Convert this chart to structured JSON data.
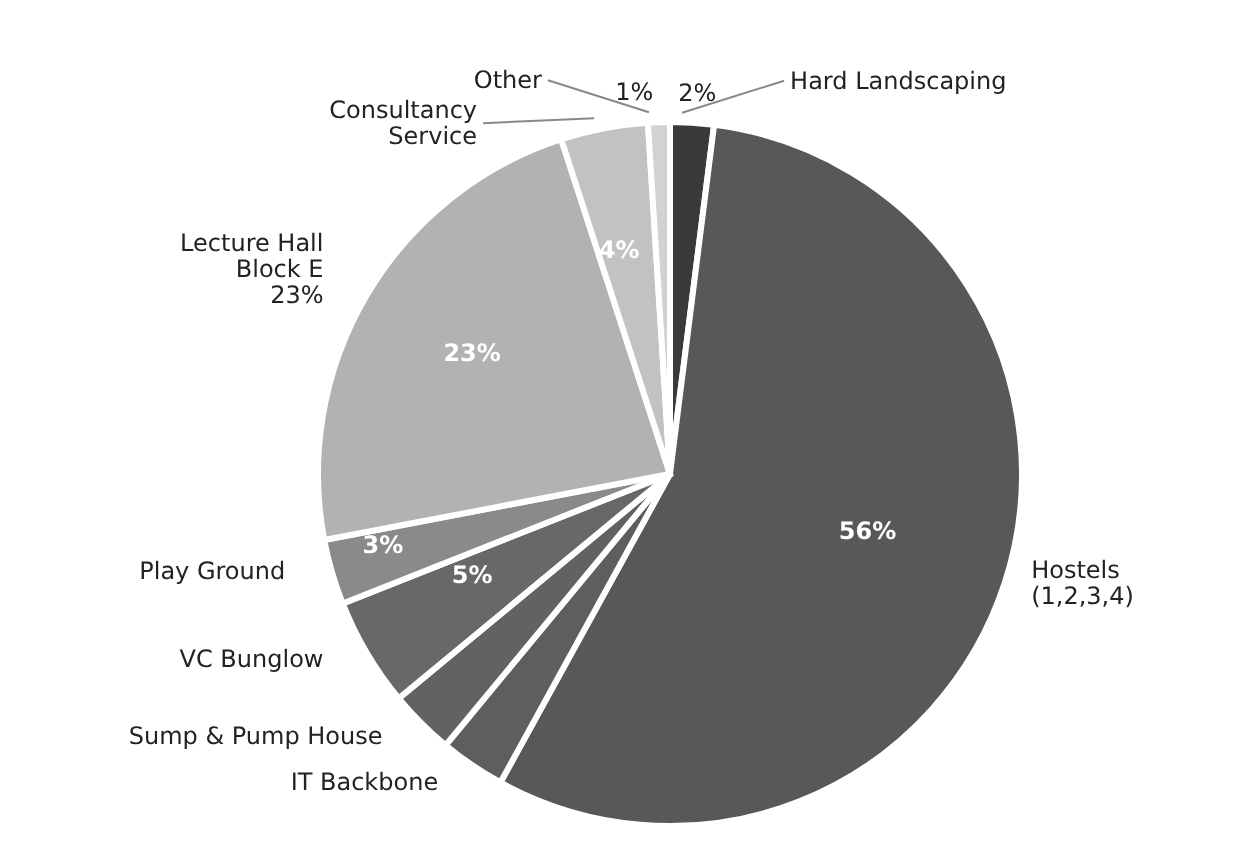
{
  "chart_data": {
    "type": "pie",
    "categories": [
      "Hard Landscaping",
      "Hostels\n(1,2,3,4)",
      "IT Backbone",
      "Sump & Pump House",
      "VC Bunglow",
      "Play Ground",
      "Lecture Hall\nBlock E\n23%",
      "Consultancy\nService",
      "Other"
    ],
    "values": [
      2,
      56,
      3,
      3,
      5,
      3,
      23,
      4,
      1
    ],
    "colors": [
      "#3a3a3a",
      "#585858",
      "#5e5e5e",
      "#626262",
      "#686868",
      "#8a8a8a",
      "#b2b2b2",
      "#c2c2c2",
      "#d2d2d2"
    ],
    "value_labels": [
      "2%",
      "56%",
      null,
      null,
      "5%",
      "3%",
      "23%",
      "4%",
      "1%"
    ]
  }
}
